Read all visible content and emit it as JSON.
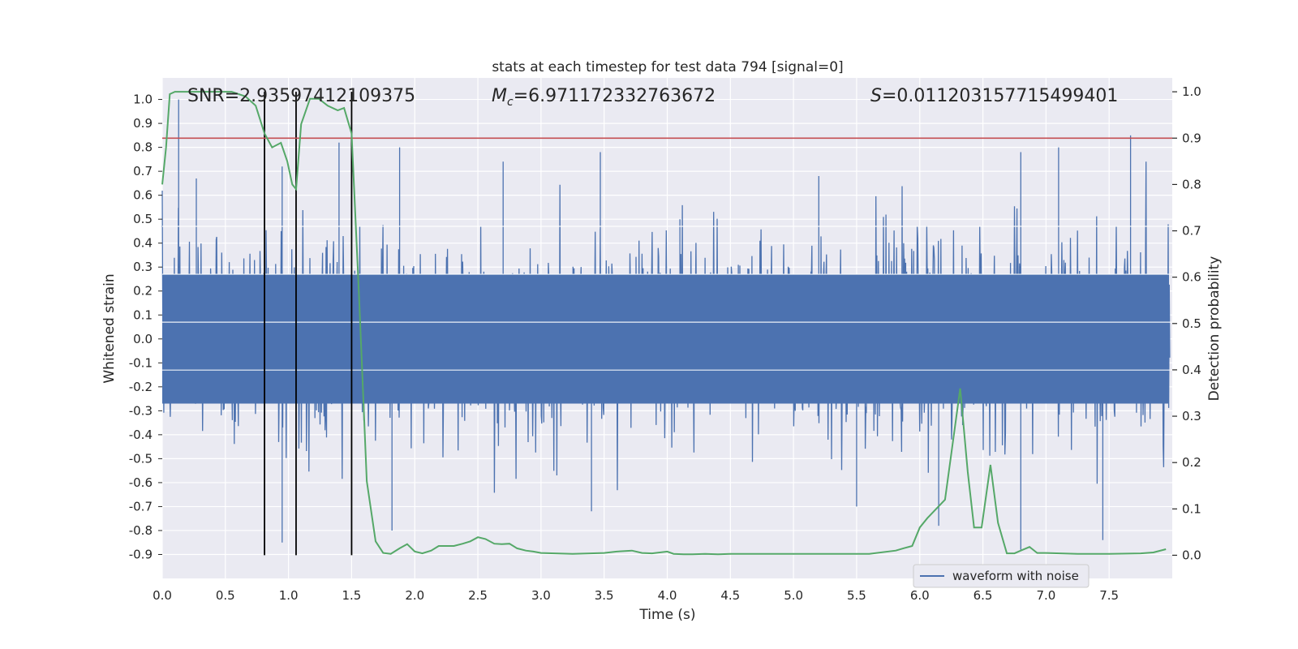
{
  "chart_data": {
    "type": "line",
    "title": "stats at each timestep for test data 794 [signal=0]",
    "xlabel": "Time (s)",
    "ylabel_left": "Whitened strain",
    "ylabel_right": "Detection probability",
    "xlim": [
      0.0,
      8.0
    ],
    "ylim_left": [
      -1.0,
      1.09
    ],
    "ylim_right": [
      -0.05,
      1.03
    ],
    "x_ticks": [
      "0.0",
      "0.5",
      "1.0",
      "1.5",
      "2.0",
      "2.5",
      "3.0",
      "3.5",
      "4.0",
      "4.5",
      "5.0",
      "5.5",
      "6.0",
      "6.5",
      "7.0",
      "7.5"
    ],
    "y_ticks_left": [
      "-0.9",
      "-0.8",
      "-0.7",
      "-0.6",
      "-0.5",
      "-0.4",
      "-0.3",
      "-0.2",
      "-0.1",
      "0.0",
      "0.1",
      "0.2",
      "0.3",
      "0.4",
      "0.5",
      "0.6",
      "0.7",
      "0.8",
      "0.9",
      "1.0"
    ],
    "y_ticks_right": [
      "0.0",
      "0.1",
      "0.2",
      "0.3",
      "0.4",
      "0.5",
      "0.6",
      "0.7",
      "0.8",
      "0.9",
      "1.0"
    ],
    "grid": true,
    "legend_position": "lower-right",
    "annotations": {
      "snr": "SNR=2.93597412109375",
      "mc_symbol": "M",
      "mc_subscript": "c",
      "mc_value": "=6.971172332763672",
      "s_symbol": "S",
      "s_value": "=0.011203157715499401"
    },
    "threshold": {
      "value": 0.9,
      "axis": "right"
    },
    "vertical_markers": [
      0.81,
      1.06,
      1.5
    ],
    "series": [
      {
        "name": "waveform with noise",
        "axis": "left",
        "color": "#4c72b0",
        "envelope_peaks": [
          {
            "x": 0.13,
            "y": 1.0
          },
          {
            "x": 0.27,
            "y": 0.67
          },
          {
            "x": 0.95,
            "y": 0.72
          },
          {
            "x": 1.4,
            "y": 0.82
          },
          {
            "x": 1.88,
            "y": 0.8
          },
          {
            "x": 2.7,
            "y": 0.74
          },
          {
            "x": 3.47,
            "y": 0.78
          },
          {
            "x": 4.1,
            "y": 0.5
          },
          {
            "x": 5.2,
            "y": 0.68
          },
          {
            "x": 6.8,
            "y": 0.78
          },
          {
            "x": 7.1,
            "y": 0.8
          },
          {
            "x": 7.67,
            "y": 0.85
          },
          {
            "x": 0.95,
            "y": -0.85
          },
          {
            "x": 1.82,
            "y": -0.8
          },
          {
            "x": 3.4,
            "y": -0.72
          },
          {
            "x": 5.5,
            "y": -0.7
          },
          {
            "x": 6.15,
            "y": -0.78
          },
          {
            "x": 6.8,
            "y": -0.88
          },
          {
            "x": 7.45,
            "y": -0.84
          }
        ]
      },
      {
        "name": "",
        "axis": "right",
        "color": "#55a868",
        "x": [
          0.0,
          0.03,
          0.06,
          0.1,
          0.2,
          0.4,
          0.55,
          0.66,
          0.74,
          0.81,
          0.87,
          0.94,
          0.99,
          1.03,
          1.06,
          1.1,
          1.17,
          1.24,
          1.31,
          1.39,
          1.44,
          1.5,
          1.56,
          1.62,
          1.69,
          1.75,
          1.81,
          1.88,
          1.94,
          2.0,
          2.06,
          2.13,
          2.19,
          2.25,
          2.31,
          2.38,
          2.44,
          2.5,
          2.56,
          2.63,
          2.69,
          2.75,
          2.81,
          2.88,
          2.94,
          3.0,
          3.25,
          3.5,
          3.6,
          3.72,
          3.8,
          3.88,
          4.0,
          4.05,
          4.13,
          4.2,
          4.3,
          4.4,
          4.5,
          4.75,
          5.0,
          5.19,
          5.3,
          5.6,
          5.81,
          5.87,
          5.94,
          6.0,
          6.06,
          6.13,
          6.2,
          6.25,
          6.32,
          6.38,
          6.43,
          6.49,
          6.56,
          6.62,
          6.69,
          6.75,
          6.8,
          6.87,
          6.93,
          7.0,
          7.25,
          7.5,
          7.75,
          7.85,
          7.95
        ],
        "y": [
          0.8,
          0.88,
          0.995,
          1.0,
          1.0,
          1.0,
          1.0,
          0.99,
          0.97,
          0.91,
          0.88,
          0.89,
          0.85,
          0.8,
          0.79,
          0.93,
          0.985,
          0.985,
          0.97,
          0.96,
          0.965,
          0.91,
          0.55,
          0.16,
          0.03,
          0.005,
          0.003,
          0.015,
          0.024,
          0.008,
          0.004,
          0.01,
          0.02,
          0.02,
          0.02,
          0.025,
          0.03,
          0.039,
          0.035,
          0.025,
          0.024,
          0.025,
          0.015,
          0.01,
          0.008,
          0.005,
          0.003,
          0.005,
          0.008,
          0.01,
          0.005,
          0.004,
          0.008,
          0.003,
          0.002,
          0.002,
          0.003,
          0.002,
          0.003,
          0.003,
          0.003,
          0.003,
          0.003,
          0.003,
          0.01,
          0.015,
          0.02,
          0.06,
          0.08,
          0.1,
          0.12,
          0.22,
          0.36,
          0.18,
          0.06,
          0.06,
          0.195,
          0.07,
          0.004,
          0.004,
          0.01,
          0.018,
          0.005,
          0.005,
          0.003,
          0.003,
          0.004,
          0.006,
          0.013
        ]
      }
    ]
  }
}
